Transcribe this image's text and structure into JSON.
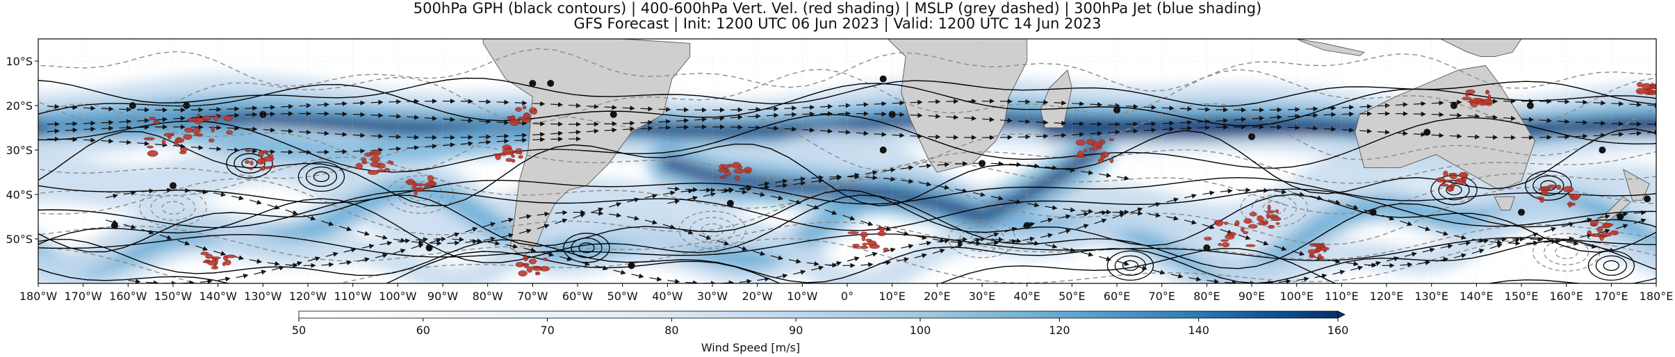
{
  "title": {
    "line1": "500hPa GPH (black contours) | 400-600hPa Vert. Vel. (red shading) | MSLP (grey dashed) | 300hPa Jet (blue shading)",
    "line2": "GFS Forecast | Init: 1200 UTC 06 Jun 2023 | Valid: 1200 UTC 14 Jun 2023"
  },
  "map": {
    "lon_range": [
      -180,
      180
    ],
    "lat_range": [
      -60,
      -5
    ],
    "projection": "equirectangular",
    "x_ticks": [
      "180°W",
      "170°W",
      "160°W",
      "150°W",
      "140°W",
      "130°W",
      "120°W",
      "110°W",
      "100°W",
      "90°W",
      "80°W",
      "70°W",
      "60°W",
      "50°W",
      "40°W",
      "30°W",
      "20°W",
      "10°W",
      "0°",
      "10°E",
      "20°E",
      "30°E",
      "40°E",
      "50°E",
      "60°E",
      "70°E",
      "80°E",
      "90°E",
      "100°E",
      "110°E",
      "120°E",
      "130°E",
      "140°E",
      "150°E",
      "160°E",
      "170°E",
      "180°E"
    ],
    "y_ticks": [
      {
        "label": "10°S",
        "lat": -10
      },
      {
        "label": "20°S",
        "lat": -20
      },
      {
        "label": "30°S",
        "lat": -30
      },
      {
        "label": "40°S",
        "lat": -40
      },
      {
        "label": "50°S",
        "lat": -50
      }
    ],
    "colors": {
      "land": "#cfcfcf",
      "coast": "#555555",
      "gph_contour": "#000000",
      "mslp_contour": "#8a8a8a",
      "vert_vel": "#c0392b",
      "jet_light": "#c6dbef",
      "jet_mid": "#6baed6",
      "jet_dark": "#08306b"
    }
  },
  "colorbar": {
    "label": "Wind Speed [m/s]",
    "ticks": [
      "50",
      "60",
      "70",
      "80",
      "90",
      "100",
      "120",
      "140",
      "160"
    ],
    "colors": [
      "#ffffff",
      "#f0f6fc",
      "#deebf7",
      "#c6dbef",
      "#9ecae1",
      "#6baed6",
      "#3182bd",
      "#08519c",
      "#08306b"
    ],
    "extend": "max"
  }
}
